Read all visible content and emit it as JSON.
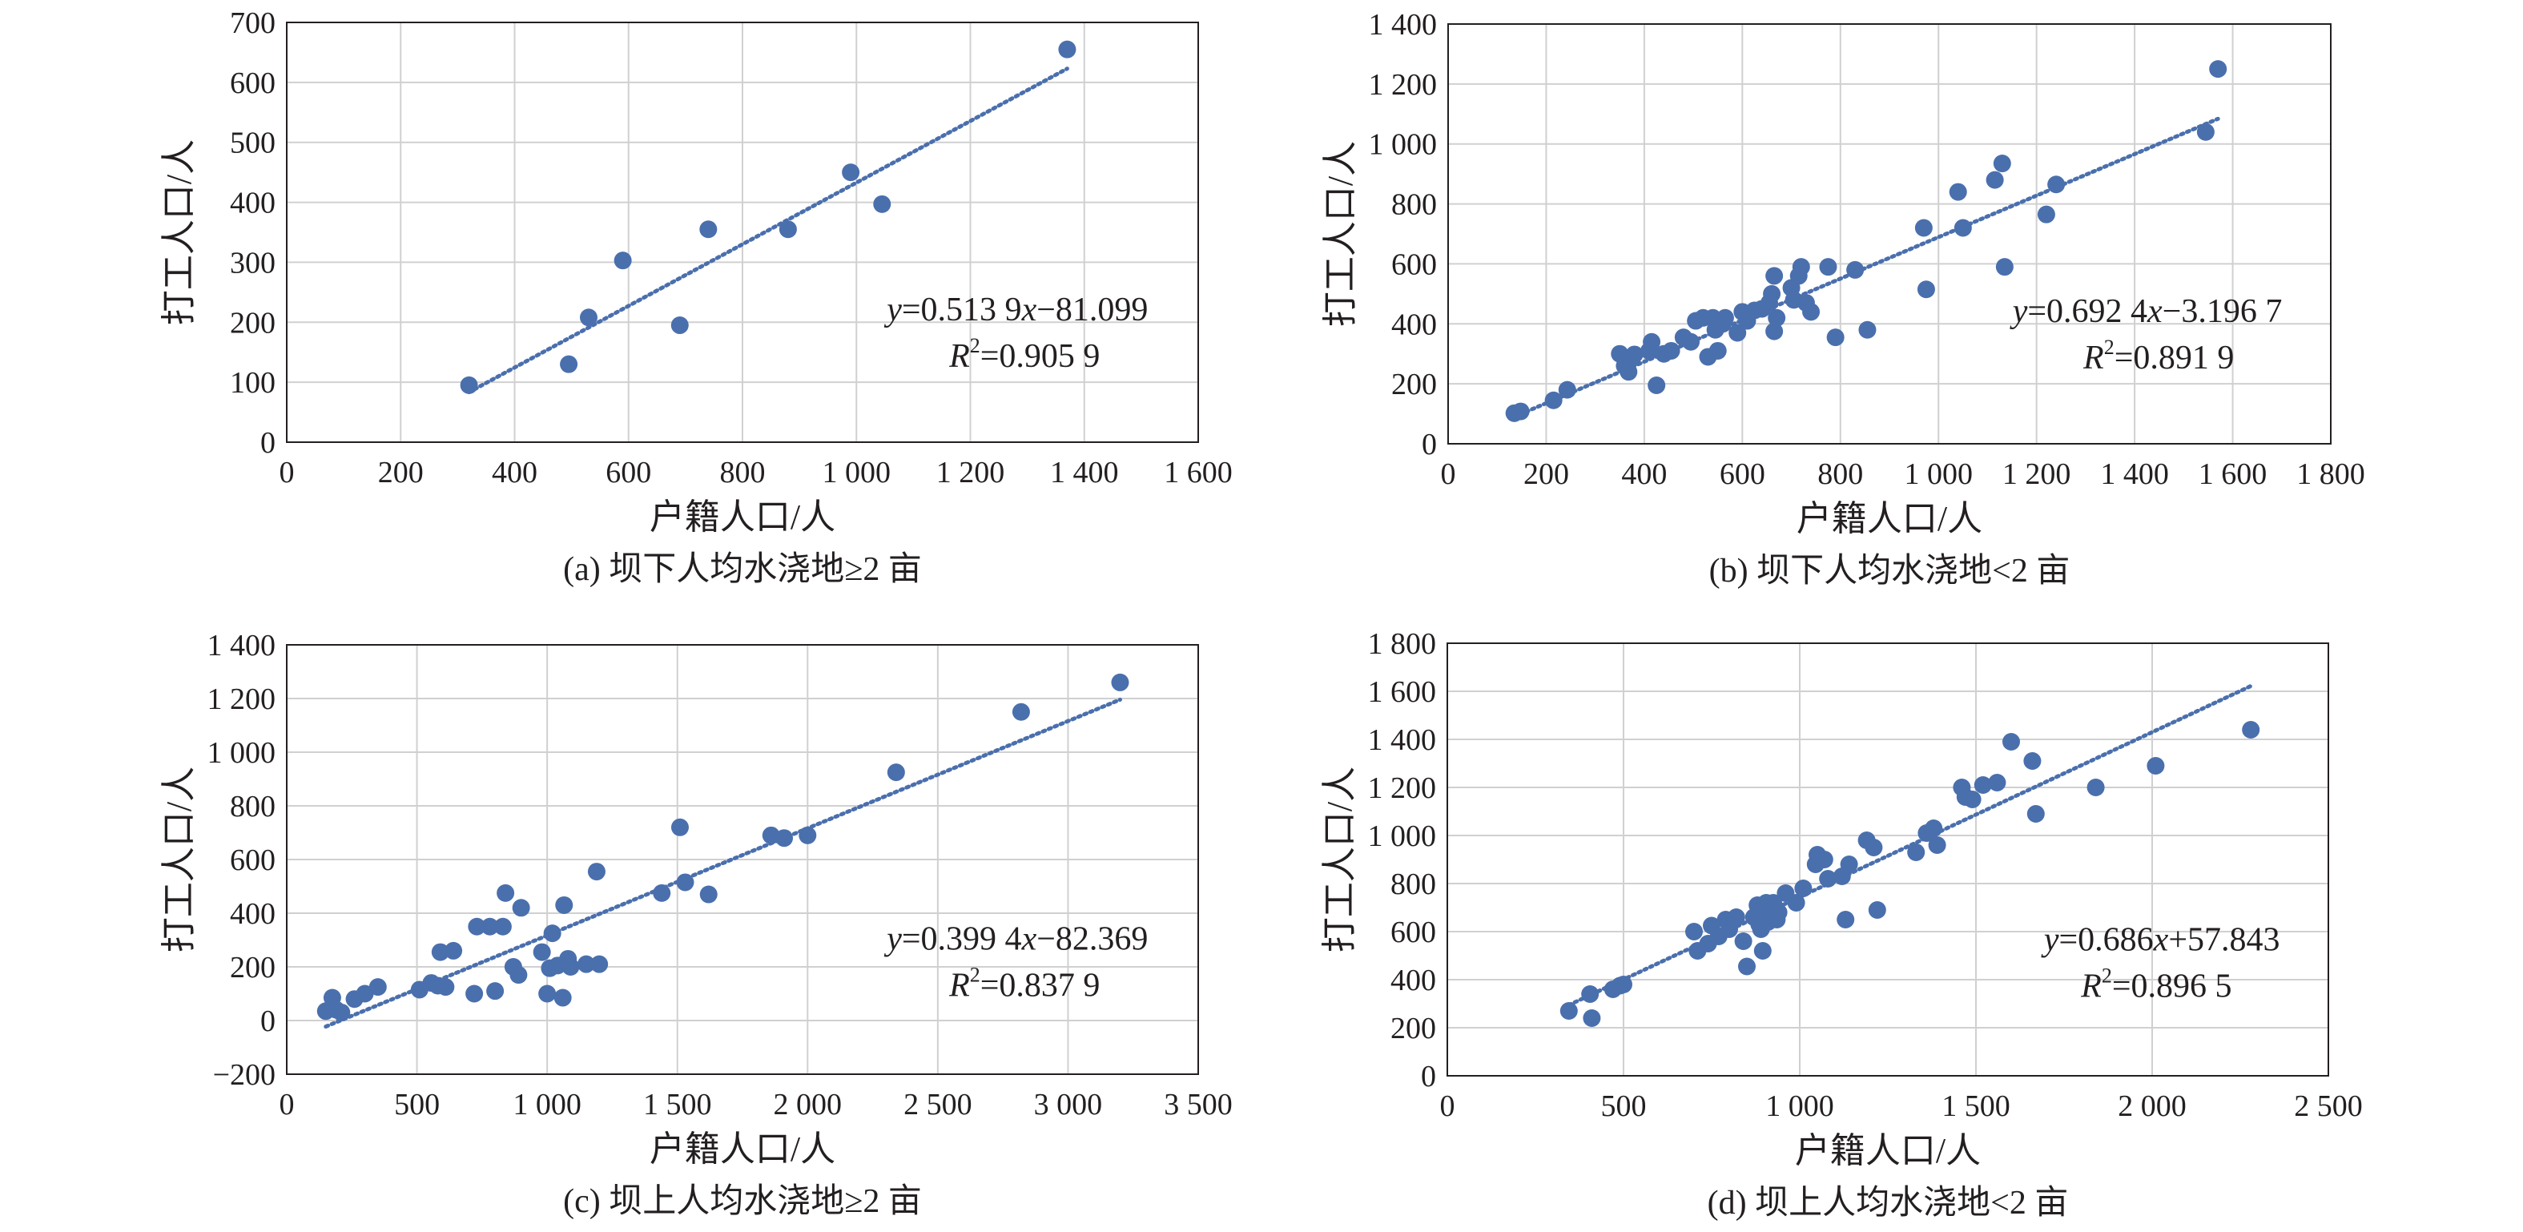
{
  "figure": {
    "panels": [
      {
        "caption": "(a) 坝下人均水浇地≥2 亩"
      },
      {
        "caption": "(b) 坝下人均水浇地<2 亩"
      },
      {
        "caption": "(c) 坝上人均水浇地≥2 亩"
      },
      {
        "caption": "(d) 坝上人均水浇地<2 亩"
      }
    ]
  },
  "colors": {
    "points": "#4a6fad",
    "trendline": "#4a6fad",
    "grid": "#d0d0d0",
    "frame": "#231f20",
    "text": "#231f20"
  },
  "chart_data": [
    {
      "type": "scatter",
      "caption": "(a) 坝下人均水浇地≥2 亩",
      "xlabel": "户籍人口/人",
      "ylabel": "打工人口/人",
      "xlim": [
        0,
        1600
      ],
      "ylim": [
        0,
        700
      ],
      "xticks": [
        0,
        200,
        400,
        600,
        800,
        1000,
        1200,
        1400,
        1600
      ],
      "xtick_labels": [
        "0",
        "200",
        "400",
        "600",
        "800",
        "1 000",
        "1 200",
        "1 400",
        "1 600"
      ],
      "yticks": [
        0,
        100,
        200,
        300,
        400,
        500,
        600,
        700
      ],
      "ytick_labels": [
        "0",
        "100",
        "200",
        "300",
        "400",
        "500",
        "600",
        "700"
      ],
      "grid": true,
      "points": [
        [
          320,
          95
        ],
        [
          495,
          130
        ],
        [
          530,
          208
        ],
        [
          590,
          303
        ],
        [
          690,
          195
        ],
        [
          740,
          355
        ],
        [
          880,
          355
        ],
        [
          990,
          450
        ],
        [
          1045,
          397
        ],
        [
          1370,
          655
        ]
      ],
      "trendline": {
        "slope": 0.5139,
        "intercept": -81.099,
        "x_range": [
          320,
          1370
        ]
      },
      "equation": {
        "y_label": "y",
        "rhs": "=0.513 9",
        "x_label": "x",
        "tail": "−81.099"
      },
      "r2": {
        "label": "R",
        "sup": "2",
        "value": "=0.905 9"
      }
    },
    {
      "type": "scatter",
      "caption": "(b) 坝下人均水浇地<2 亩",
      "xlabel": "户籍人口/人",
      "ylabel": "打工人口/人",
      "xlim": [
        0,
        1800
      ],
      "ylim": [
        0,
        1400
      ],
      "xticks": [
        0,
        200,
        400,
        600,
        800,
        1000,
        1200,
        1400,
        1600,
        1800
      ],
      "xtick_labels": [
        "0",
        "200",
        "400",
        "600",
        "800",
        "1 000",
        "1 200",
        "1 400",
        "1 600",
        "1 800"
      ],
      "yticks": [
        0,
        200,
        400,
        600,
        800,
        1000,
        1200,
        1400
      ],
      "ytick_labels": [
        "0",
        "200",
        "400",
        "600",
        "800",
        "1 000",
        "1 200",
        "1 400"
      ],
      "grid": true,
      "points": [
        [
          135,
          102
        ],
        [
          148,
          108
        ],
        [
          215,
          145
        ],
        [
          243,
          180
        ],
        [
          350,
          300
        ],
        [
          360,
          260
        ],
        [
          368,
          240
        ],
        [
          375,
          285
        ],
        [
          380,
          298
        ],
        [
          410,
          310
        ],
        [
          415,
          340
        ],
        [
          425,
          195
        ],
        [
          440,
          300
        ],
        [
          455,
          310
        ],
        [
          480,
          355
        ],
        [
          495,
          340
        ],
        [
          505,
          410
        ],
        [
          520,
          420
        ],
        [
          530,
          290
        ],
        [
          540,
          420
        ],
        [
          545,
          380
        ],
        [
          550,
          310
        ],
        [
          560,
          400
        ],
        [
          565,
          420
        ],
        [
          590,
          370
        ],
        [
          600,
          440
        ],
        [
          610,
          410
        ],
        [
          625,
          445
        ],
        [
          640,
          450
        ],
        [
          655,
          470
        ],
        [
          660,
          500
        ],
        [
          665,
          560
        ],
        [
          665,
          375
        ],
        [
          670,
          420
        ],
        [
          700,
          520
        ],
        [
          705,
          480
        ],
        [
          715,
          560
        ],
        [
          720,
          590
        ],
        [
          730,
          470
        ],
        [
          740,
          440
        ],
        [
          775,
          590
        ],
        [
          790,
          355
        ],
        [
          830,
          580
        ],
        [
          855,
          380
        ],
        [
          970,
          720
        ],
        [
          975,
          515
        ],
        [
          1040,
          840
        ],
        [
          1050,
          720
        ],
        [
          1115,
          880
        ],
        [
          1130,
          935
        ],
        [
          1135,
          590
        ],
        [
          1220,
          765
        ],
        [
          1240,
          865
        ],
        [
          1545,
          1040
        ],
        [
          1570,
          1250
        ]
      ],
      "trendline": {
        "slope": 0.6924,
        "intercept": -3.1967,
        "x_range": [
          135,
          1570
        ]
      },
      "equation": {
        "y_label": "y",
        "rhs": "=0.692 4",
        "x_label": "x",
        "tail": "−3.196 7"
      },
      "r2": {
        "label": "R",
        "sup": "2",
        "value": "=0.891 9"
      }
    },
    {
      "type": "scatter",
      "caption": "(c) 坝上人均水浇地≥2 亩",
      "xlabel": "户籍人口/人",
      "ylabel": "打工人口/人",
      "xlim": [
        0,
        3500
      ],
      "ylim": [
        -200,
        1400
      ],
      "xticks": [
        0,
        500,
        1000,
        1500,
        2000,
        2500,
        3000,
        3500
      ],
      "xtick_labels": [
        "0",
        "500",
        "1 000",
        "1 500",
        "2 000",
        "2 500",
        "3 000",
        "3 500"
      ],
      "yticks": [
        -200,
        0,
        200,
        400,
        600,
        800,
        1000,
        1200,
        1400
      ],
      "ytick_labels": [
        "−200",
        "0",
        "200",
        "400",
        "600",
        "800",
        "1 000",
        "1 200",
        "1 400"
      ],
      "grid": true,
      "points": [
        [
          150,
          35
        ],
        [
          175,
          85
        ],
        [
          190,
          40
        ],
        [
          210,
          30
        ],
        [
          260,
          80
        ],
        [
          300,
          100
        ],
        [
          350,
          125
        ],
        [
          510,
          115
        ],
        [
          555,
          140
        ],
        [
          580,
          130
        ],
        [
          590,
          255
        ],
        [
          610,
          125
        ],
        [
          640,
          260
        ],
        [
          720,
          100
        ],
        [
          730,
          350
        ],
        [
          780,
          350
        ],
        [
          800,
          110
        ],
        [
          830,
          350
        ],
        [
          840,
          475
        ],
        [
          870,
          200
        ],
        [
          890,
          170
        ],
        [
          900,
          420
        ],
        [
          980,
          255
        ],
        [
          1000,
          100
        ],
        [
          1010,
          195
        ],
        [
          1020,
          325
        ],
        [
          1040,
          205
        ],
        [
          1060,
          85
        ],
        [
          1065,
          430
        ],
        [
          1080,
          230
        ],
        [
          1090,
          200
        ],
        [
          1150,
          210
        ],
        [
          1190,
          555
        ],
        [
          1200,
          210
        ],
        [
          1440,
          475
        ],
        [
          1510,
          720
        ],
        [
          1530,
          515
        ],
        [
          1620,
          470
        ],
        [
          1860,
          690
        ],
        [
          1910,
          680
        ],
        [
          2000,
          690
        ],
        [
          2340,
          925
        ],
        [
          2820,
          1150
        ],
        [
          3200,
          1260
        ]
      ],
      "trendline": {
        "slope": 0.3994,
        "intercept": -82.369,
        "x_range": [
          150,
          3200
        ]
      },
      "equation": {
        "y_label": "y",
        "rhs": "=0.399 4",
        "x_label": "x",
        "tail": "−82.369"
      },
      "r2": {
        "label": "R",
        "sup": "2",
        "value": "=0.837 9"
      }
    },
    {
      "type": "scatter",
      "caption": "(d) 坝上人均水浇地<2 亩",
      "xlabel": "户籍人口/人",
      "ylabel": "打工人口/人",
      "xlim": [
        0,
        2500
      ],
      "ylim": [
        0,
        1800
      ],
      "xticks": [
        0,
        500,
        1000,
        1500,
        2000,
        2500
      ],
      "xtick_labels": [
        "0",
        "500",
        "1 000",
        "1 500",
        "2 000",
        "2 500"
      ],
      "yticks": [
        0,
        200,
        400,
        600,
        800,
        1000,
        1200,
        1400,
        1600,
        1800
      ],
      "ytick_labels": [
        "0",
        "200",
        "400",
        "600",
        "800",
        "1 000",
        "1 200",
        "1 400",
        "1 600",
        "1 800"
      ],
      "grid": true,
      "points": [
        [
          345,
          270
        ],
        [
          405,
          340
        ],
        [
          410,
          240
        ],
        [
          470,
          360
        ],
        [
          490,
          375
        ],
        [
          500,
          380
        ],
        [
          700,
          600
        ],
        [
          710,
          520
        ],
        [
          740,
          550
        ],
        [
          750,
          625
        ],
        [
          770,
          580
        ],
        [
          790,
          650
        ],
        [
          800,
          610
        ],
        [
          820,
          660
        ],
        [
          840,
          560
        ],
        [
          850,
          455
        ],
        [
          870,
          660
        ],
        [
          880,
          710
        ],
        [
          885,
          630
        ],
        [
          890,
          610
        ],
        [
          895,
          520
        ],
        [
          900,
          690
        ],
        [
          905,
          720
        ],
        [
          910,
          640
        ],
        [
          915,
          700
        ],
        [
          920,
          660
        ],
        [
          925,
          720
        ],
        [
          930,
          700
        ],
        [
          935,
          650
        ],
        [
          940,
          680
        ],
        [
          960,
          760
        ],
        [
          990,
          720
        ],
        [
          1010,
          780
        ],
        [
          1045,
          880
        ],
        [
          1050,
          920
        ],
        [
          1070,
          900
        ],
        [
          1080,
          820
        ],
        [
          1120,
          830
        ],
        [
          1130,
          650
        ],
        [
          1140,
          880
        ],
        [
          1190,
          980
        ],
        [
          1210,
          950
        ],
        [
          1220,
          690
        ],
        [
          1330,
          930
        ],
        [
          1360,
          1010
        ],
        [
          1380,
          1030
        ],
        [
          1390,
          960
        ],
        [
          1460,
          1200
        ],
        [
          1470,
          1160
        ],
        [
          1490,
          1150
        ],
        [
          1520,
          1210
        ],
        [
          1560,
          1220
        ],
        [
          1600,
          1390
        ],
        [
          1660,
          1310
        ],
        [
          1670,
          1090
        ],
        [
          1840,
          1200
        ],
        [
          2010,
          1290
        ],
        [
          2280,
          1440
        ]
      ],
      "trendline": {
        "slope": 0.686,
        "intercept": 57.843,
        "x_range": [
          345,
          2280
        ]
      },
      "equation": {
        "y_label": "y",
        "rhs": "=0.686",
        "x_label": "x",
        "tail": "+57.843"
      },
      "r2": {
        "label": "R",
        "sup": "2",
        "value": "=0.896 5"
      }
    }
  ]
}
